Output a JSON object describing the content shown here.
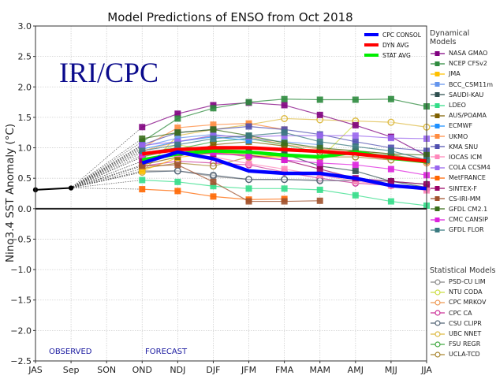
{
  "chart_data": {
    "type": "line",
    "title": "Model Predictions of ENSO from Oct 2018",
    "watermark": "IRI/CPC",
    "xlabel": "",
    "ylabel": "Nino3.4 SST Anomaly (°C)",
    "ylim": [
      -2.5,
      3.0
    ],
    "yticks": [
      "3.0",
      "2.5",
      "2.0",
      "1.5",
      "1.0",
      "0.5",
      "0.0",
      "−0.5",
      "−1.0",
      "−1.5",
      "−2.0",
      "−2.5"
    ],
    "ytick_values": [
      3.0,
      2.5,
      2.0,
      1.5,
      1.0,
      0.5,
      0.0,
      -0.5,
      -1.0,
      -1.5,
      -2.0,
      -2.5
    ],
    "categories": [
      "JAS",
      "Sep",
      "SON",
      "OND",
      "NDJ",
      "DJF",
      "JFM",
      "FMA",
      "MAM",
      "AMJ",
      "MJJ",
      "JJA"
    ],
    "grid": true,
    "annotations": {
      "observed": "OBSERVED",
      "forecast": "FORECAST"
    },
    "observed": {
      "name": "Observed",
      "color": "#000000",
      "x": [
        "JAS",
        "Sep"
      ],
      "values": [
        0.31,
        0.34
      ]
    },
    "consensus_series": [
      {
        "name": "CPC CONSOL",
        "color": "#0000ff",
        "values": [
          0.75,
          0.93,
          0.82,
          0.62,
          0.58,
          0.58,
          0.5,
          0.38,
          0.33
        ]
      },
      {
        "name": "DYN AVG",
        "color": "#ff0000",
        "values": [
          0.9,
          0.97,
          1.0,
          1.0,
          0.97,
          0.94,
          0.9,
          0.84,
          0.78
        ]
      },
      {
        "name": "STAT AVG",
        "color": "#00ee00",
        "values": [
          0.8,
          0.9,
          0.95,
          0.93,
          0.88,
          0.85,
          0.93,
          0.83,
          0.77
        ]
      }
    ],
    "forecast_x": [
      "OND",
      "NDJ",
      "DJF",
      "JFM",
      "FMA",
      "MAM",
      "AMJ",
      "MJJ",
      "JJA"
    ],
    "legend_groups": {
      "dynamical": "Dynamical Models",
      "statistical": "Statistical Models"
    },
    "dynamical_series": [
      {
        "name": "NASA GMAO",
        "color": "#800080",
        "values": [
          1.34,
          1.56,
          1.7,
          1.74,
          1.7,
          1.54,
          1.37,
          1.18,
          0.87
        ]
      },
      {
        "name": "NCEP CFSv2",
        "color": "#2e8b3e",
        "values": [
          1.1,
          1.48,
          1.65,
          1.75,
          1.8,
          1.79,
          1.79,
          1.8,
          1.68
        ]
      },
      {
        "name": "JMA",
        "color": "#ffc000",
        "values": [
          0.62,
          0.84,
          0.92,
          0.88,
          0.84,
          null,
          null,
          null,
          null
        ]
      },
      {
        "name": "BCC_CSM11m",
        "color": "#6495ed",
        "values": [
          1.02,
          1.16,
          1.22,
          1.15,
          1.1,
          1.05,
          null,
          null,
          null
        ]
      },
      {
        "name": "SAUDI-KAU",
        "color": "#2f4f4f",
        "values": [
          0.92,
          1.0,
          0.97,
          0.94,
          0.9,
          0.7,
          0.62,
          0.45,
          0.35
        ]
      },
      {
        "name": "LDEO",
        "color": "#33dd88",
        "values": [
          0.47,
          0.44,
          0.37,
          0.33,
          0.33,
          0.31,
          0.22,
          0.12,
          0.05
        ]
      },
      {
        "name": "AUS/POAMA",
        "color": "#806000",
        "values": [
          0.72,
          0.85,
          1.05,
          1.1,
          1.03,
          null,
          null,
          null,
          null
        ]
      },
      {
        "name": "ECMWF",
        "color": "#1e90ff",
        "values": [
          0.98,
          1.1,
          1.18,
          1.12,
          null,
          null,
          null,
          null,
          null
        ]
      },
      {
        "name": "UKMO",
        "color": "#ff8c40",
        "values": [
          1.0,
          1.33,
          1.38,
          1.4,
          1.3,
          null,
          null,
          null,
          null
        ]
      },
      {
        "name": "KMA SNU",
        "color": "#5050b0",
        "values": [
          1.05,
          1.25,
          1.3,
          1.35,
          1.3,
          1.22,
          1.1,
          1.0,
          0.95
        ]
      },
      {
        "name": "IOCAS ICM",
        "color": "#ff88bb",
        "values": [
          0.78,
          0.9,
          0.85,
          0.74,
          0.65,
          0.55,
          0.45,
          0.38,
          0.3
        ]
      },
      {
        "name": "COLA CCSM4",
        "color": "#9966ee",
        "values": [
          1.04,
          1.1,
          1.2,
          1.18,
          1.2,
          1.2,
          1.2,
          1.16,
          1.15
        ]
      },
      {
        "name": "MetFRANCE",
        "color": "#ff6600",
        "values": [
          0.32,
          0.29,
          0.2,
          0.15,
          0.16,
          null,
          null,
          null,
          null
        ]
      },
      {
        "name": "SINTEX-F",
        "color": "#990066",
        "values": [
          0.78,
          0.92,
          0.9,
          0.88,
          0.8,
          0.65,
          0.5,
          0.45,
          0.4
        ]
      },
      {
        "name": "CS-IRI-MM",
        "color": "#a0522d",
        "values": [
          0.7,
          0.72,
          0.44,
          0.12,
          0.12,
          0.13,
          null,
          null,
          null
        ]
      },
      {
        "name": "GFDL CM2.1",
        "color": "#3a6e1a",
        "values": [
          1.15,
          1.25,
          1.3,
          1.2,
          1.08,
          1.0,
          0.95,
          0.9,
          0.88
        ]
      },
      {
        "name": "CMC CANSIP",
        "color": "#dd22dd",
        "values": [
          0.88,
          0.96,
          0.92,
          0.86,
          0.8,
          0.75,
          0.72,
          0.65,
          0.55
        ]
      },
      {
        "name": "GFDL FLOR",
        "color": "#3a7a80",
        "values": [
          0.95,
          1.05,
          1.15,
          1.2,
          1.25,
          1.1,
          1.02,
          0.95,
          0.8
        ]
      }
    ],
    "statistical_series": [
      {
        "name": "PSD-CU LIM",
        "color": "#888888",
        "values": [
          0.62,
          0.62,
          0.53,
          0.48,
          0.48,
          0.47,
          null,
          null,
          null
        ]
      },
      {
        "name": "NTU CODA",
        "color": "#ccdd44",
        "values": [
          0.85,
          1.05,
          0.95,
          0.84,
          0.86,
          0.82,
          1.4,
          null,
          null
        ]
      },
      {
        "name": "CPC MRKOV",
        "color": "#ee9955",
        "values": [
          0.95,
          1.1,
          1.2,
          1.18,
          1.05,
          0.98,
          0.95,
          0.9,
          0.75
        ]
      },
      {
        "name": "CPC CA",
        "color": "#cc3399",
        "values": [
          0.7,
          0.78,
          0.75,
          0.72,
          0.6,
          0.5,
          0.42,
          0.38,
          0.32
        ]
      },
      {
        "name": "CSU CLIPR",
        "color": "#556677",
        "values": [
          0.6,
          0.62,
          0.55,
          0.48,
          0.48,
          0.46,
          0.46,
          0.45,
          0.4
        ]
      },
      {
        "name": "UBC NNET",
        "color": "#ddbb44",
        "values": [
          0.6,
          1.2,
          1.3,
          1.38,
          1.48,
          1.46,
          1.44,
          1.42,
          1.34
        ]
      },
      {
        "name": "FSU REGR",
        "color": "#44aa44",
        "values": [
          0.85,
          0.98,
          1.1,
          1.15,
          1.05,
          0.92,
          0.9,
          0.88,
          0.8
        ]
      },
      {
        "name": "UCLA-TCD",
        "color": "#aa8833",
        "values": [
          0.66,
          0.75,
          0.7,
          0.85,
          0.88,
          0.85,
          0.85,
          0.8,
          0.78
        ]
      }
    ]
  }
}
